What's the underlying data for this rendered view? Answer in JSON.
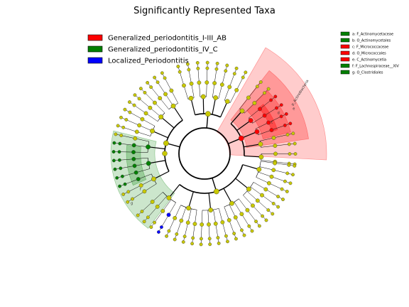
{
  "chart_data": {
    "type": "cladogram",
    "title": "Significantly Represented Taxa",
    "groups": [
      {
        "name": "Generalized_periodontitis_I-III_AB",
        "color": "#ff0000"
      },
      {
        "name": "Generalized_periodontitis_IV_C",
        "color": "#008000"
      },
      {
        "name": "Localized_Periodontitis",
        "color": "#0000ff"
      }
    ],
    "taxa_legend": [
      {
        "label": "a: F_Actinomycetaceae",
        "color": "#008000"
      },
      {
        "label": "b: O_Actinomycetales",
        "color": "#008000"
      },
      {
        "label": "c: F_Micrococcaceae",
        "color": "#ff0000"
      },
      {
        "label": "d: O_Micrococcales",
        "color": "#ff0000"
      },
      {
        "label": "e: C_Actinomycetia",
        "color": "#ff0000"
      },
      {
        "label": "f: F_Lachnospiraceae__XIV",
        "color": "#008000"
      },
      {
        "label": "g: O_Clostridiales",
        "color": "#008000"
      }
    ],
    "clade_labels": [
      "p_Actinobacteria",
      "e",
      "d",
      "c",
      "g",
      "f"
    ],
    "node_color_default": "#c8c800"
  }
}
